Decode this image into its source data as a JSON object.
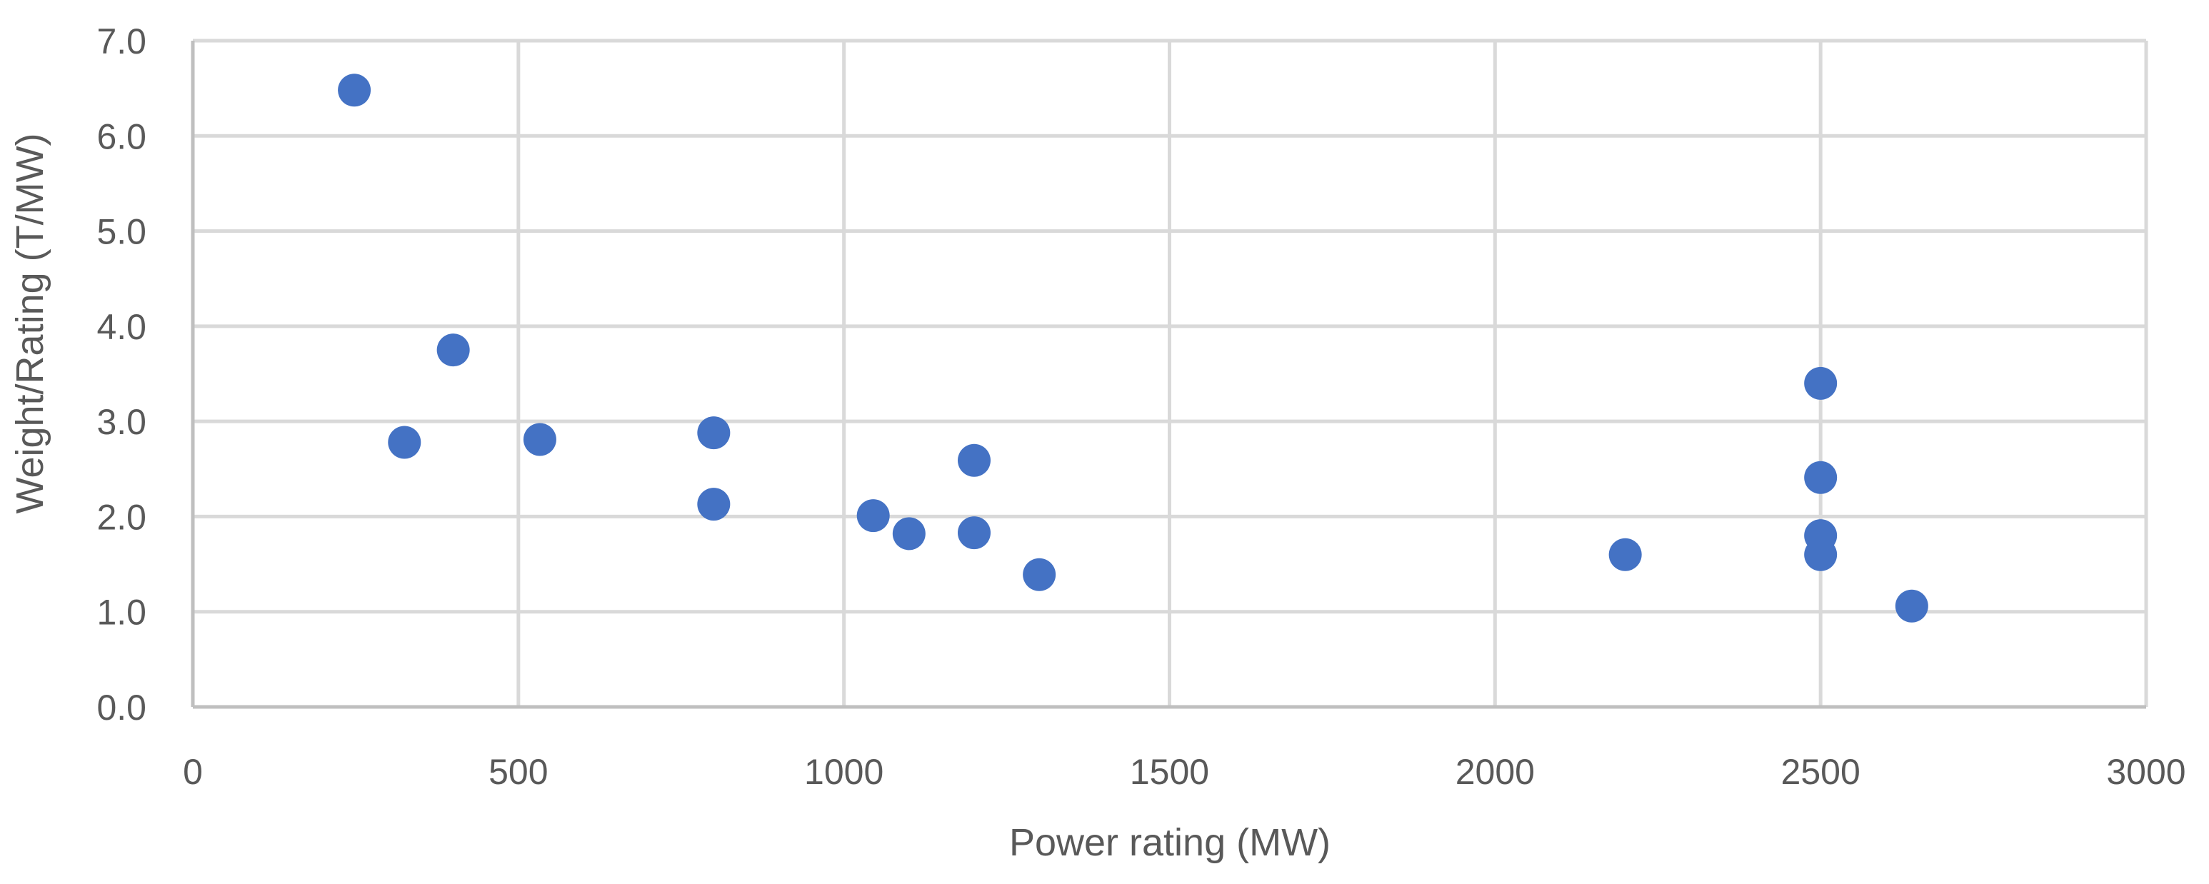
{
  "chart_data": {
    "type": "scatter",
    "title": "",
    "xlabel": "Power rating (MW)",
    "ylabel": "Weight/Rating (T/MW)",
    "xlim": [
      0,
      3000
    ],
    "ylim": [
      0,
      7
    ],
    "x_ticks": [
      0,
      500,
      1000,
      1500,
      2000,
      2500,
      3000
    ],
    "y_ticks": [
      0,
      1,
      2,
      3,
      4,
      5,
      6,
      7
    ],
    "x_tick_labels": [
      "0",
      "500",
      "1000",
      "1500",
      "2000",
      "2500",
      "3000"
    ],
    "y_tick_labels": [
      "0.0",
      "1.0",
      "2.0",
      "3.0",
      "4.0",
      "5.0",
      "6.0",
      "7.0"
    ],
    "grid": true,
    "legend": "none",
    "marker_color": "#4472C4",
    "grid_color": "#D9D9D9",
    "series": [
      {
        "points": [
          {
            "x": 248,
            "y": 6.48
          },
          {
            "x": 325,
            "y": 2.78
          },
          {
            "x": 400,
            "y": 3.75
          },
          {
            "x": 533,
            "y": 2.81
          },
          {
            "x": 800,
            "y": 2.88
          },
          {
            "x": 800,
            "y": 2.13
          },
          {
            "x": 1045,
            "y": 2.01
          },
          {
            "x": 1100,
            "y": 1.82
          },
          {
            "x": 1200,
            "y": 2.59
          },
          {
            "x": 1200,
            "y": 1.83
          },
          {
            "x": 1300,
            "y": 1.39
          },
          {
            "x": 2200,
            "y": 1.6
          },
          {
            "x": 2500,
            "y": 3.4
          },
          {
            "x": 2500,
            "y": 2.41
          },
          {
            "x": 2500,
            "y": 1.8
          },
          {
            "x": 2500,
            "y": 1.6
          },
          {
            "x": 2640,
            "y": 1.06
          }
        ]
      }
    ]
  }
}
